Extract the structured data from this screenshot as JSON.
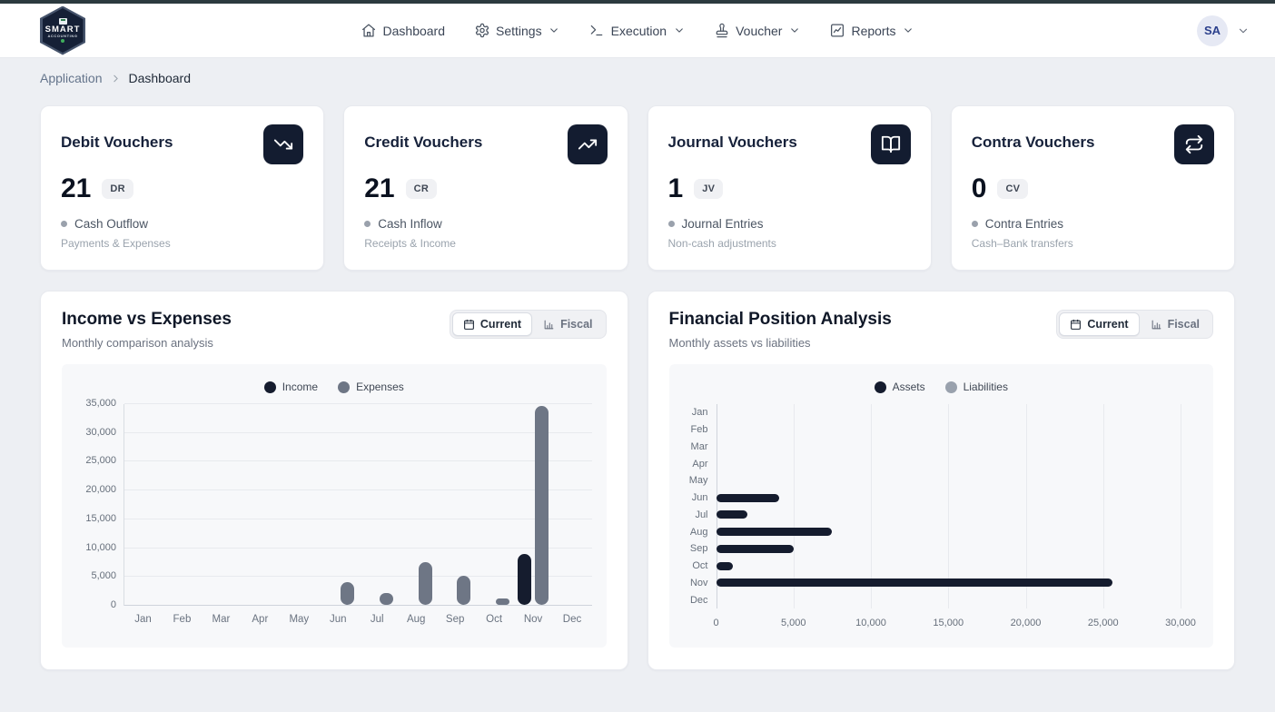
{
  "header": {
    "brand": {
      "name": "SMART",
      "sub": "ACCOUNTING"
    },
    "nav": [
      {
        "label": "Dashboard",
        "icon": "home-icon",
        "has_dropdown": false
      },
      {
        "label": "Settings",
        "icon": "gear-icon",
        "has_dropdown": true
      },
      {
        "label": "Execution",
        "icon": "terminal-icon",
        "has_dropdown": true
      },
      {
        "label": "Voucher",
        "icon": "stamp-icon",
        "has_dropdown": true
      },
      {
        "label": "Reports",
        "icon": "chart-box-icon",
        "has_dropdown": true
      }
    ],
    "user_initials": "SA"
  },
  "breadcrumb": {
    "root": "Application",
    "current": "Dashboard"
  },
  "cards": [
    {
      "title": "Debit Vouchers",
      "icon": "trending-down-icon",
      "value": "21",
      "badge": "DR",
      "label": "Cash Outflow",
      "sub": "Payments & Expenses"
    },
    {
      "title": "Credit Vouchers",
      "icon": "trending-up-icon",
      "value": "21",
      "badge": "CR",
      "label": "Cash Inflow",
      "sub": "Receipts & Income"
    },
    {
      "title": "Journal Vouchers",
      "icon": "book-open-icon",
      "value": "1",
      "badge": "JV",
      "label": "Journal Entries",
      "sub": "Non-cash adjustments"
    },
    {
      "title": "Contra Vouchers",
      "icon": "repeat-icon",
      "value": "0",
      "badge": "CV",
      "label": "Contra Entries",
      "sub": "Cash–Bank transfers"
    }
  ],
  "charts": [
    {
      "title": "Income vs Expenses",
      "subtitle": "Monthly comparison analysis",
      "options": [
        "Current",
        "Fiscal"
      ],
      "active_option": "Current"
    },
    {
      "title": "Financial Position Analysis",
      "subtitle": "Monthly assets vs liabilities",
      "options": [
        "Current",
        "Fiscal"
      ],
      "active_option": "Current"
    }
  ],
  "chart_data": [
    {
      "type": "bar",
      "orientation": "vertical",
      "title": "Income vs Expenses",
      "categories": [
        "Jan",
        "Feb",
        "Mar",
        "Apr",
        "May",
        "Jun",
        "Jul",
        "Aug",
        "Sep",
        "Oct",
        "Nov",
        "Dec"
      ],
      "series": [
        {
          "name": "Income",
          "color": "#151c2e",
          "values": [
            0,
            0,
            0,
            0,
            0,
            0,
            0,
            0,
            0,
            0,
            8800,
            0
          ]
        },
        {
          "name": "Expenses",
          "color": "#6e7685",
          "values": [
            0,
            0,
            0,
            0,
            0,
            4000,
            2000,
            7400,
            5000,
            1100,
            34500,
            0
          ]
        }
      ],
      "ylim": [
        0,
        35000
      ],
      "yticks": [
        0,
        5000,
        10000,
        15000,
        20000,
        25000,
        30000,
        35000
      ],
      "legend_position": "top",
      "grid": true
    },
    {
      "type": "bar",
      "orientation": "horizontal",
      "title": "Financial Position Analysis",
      "categories": [
        "Jan",
        "Feb",
        "Mar",
        "Apr",
        "May",
        "Jun",
        "Jul",
        "Aug",
        "Sep",
        "Oct",
        "Nov",
        "Dec"
      ],
      "series": [
        {
          "name": "Assets",
          "color": "#151c2e",
          "values": [
            0,
            0,
            0,
            0,
            0,
            4100,
            2000,
            7500,
            5000,
            1100,
            25600,
            0
          ]
        },
        {
          "name": "Liabilities",
          "color": "#99a1ad",
          "values": [
            0,
            0,
            0,
            0,
            0,
            0,
            0,
            0,
            0,
            0,
            0,
            0
          ]
        }
      ],
      "xlim": [
        0,
        30000
      ],
      "xticks": [
        0,
        5000,
        10000,
        15000,
        20000,
        25000,
        30000
      ],
      "legend_position": "top",
      "grid": true
    }
  ],
  "colors": {
    "accent_dark": "#151c2e",
    "series_gray": "#6e7685",
    "series_light_gray": "#99a1ad",
    "icon_tile": "#131c30",
    "top_strip": "#2c3a3f"
  }
}
